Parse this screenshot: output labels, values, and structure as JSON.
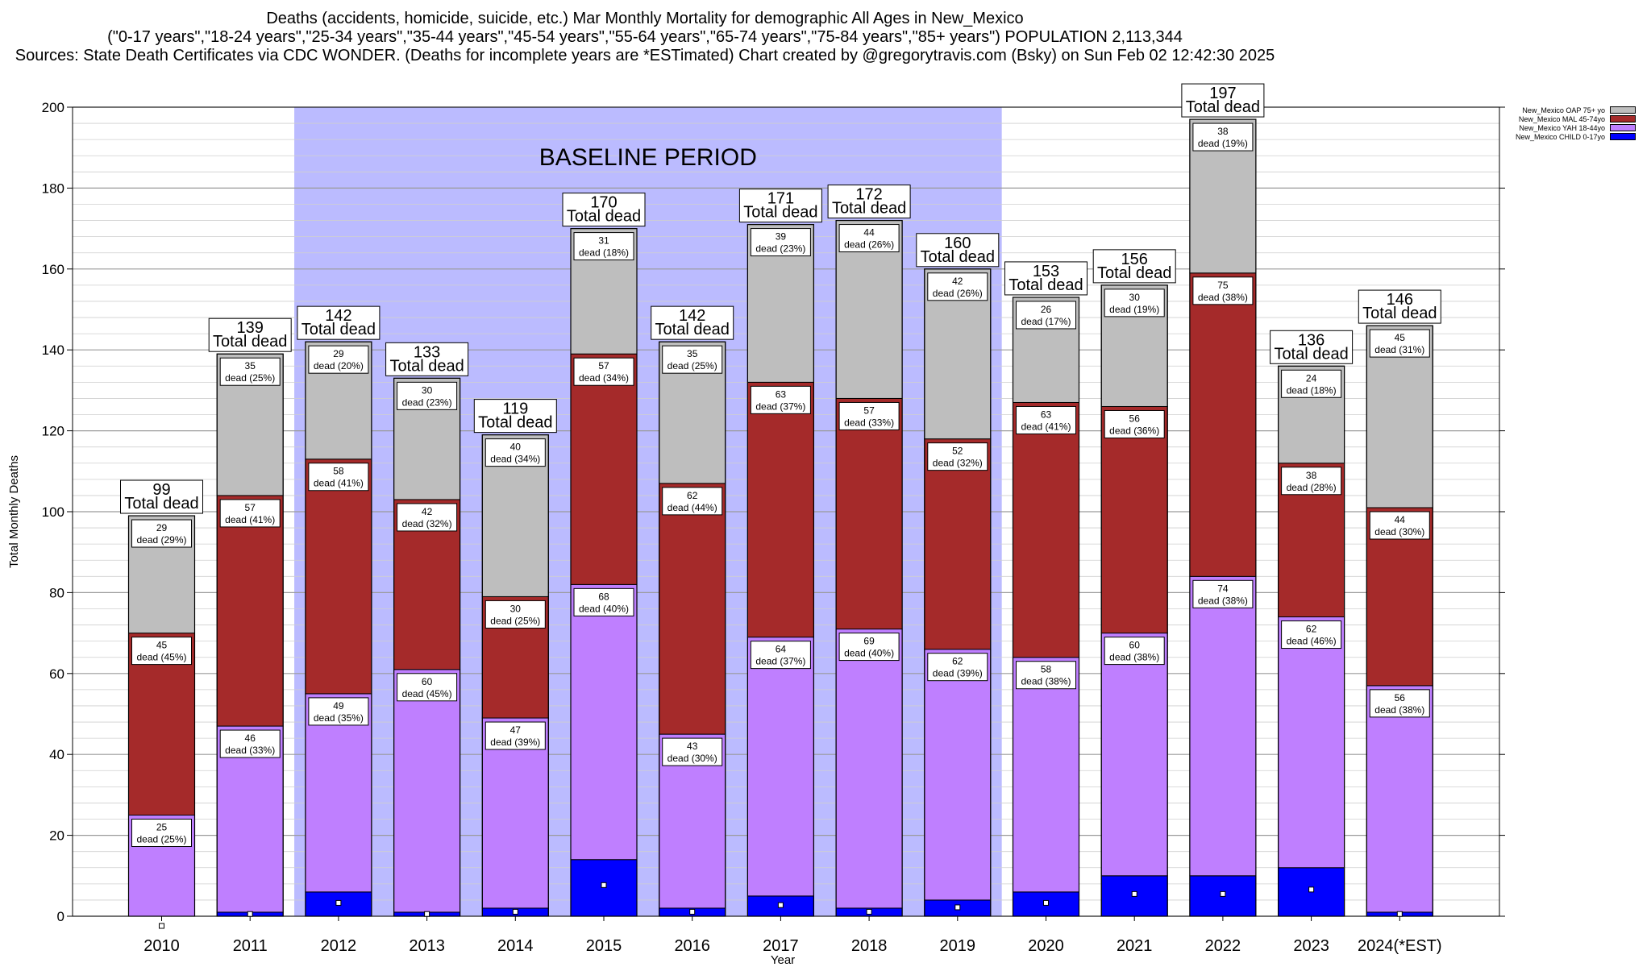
{
  "titles": {
    "line1": "Deaths (accidents, homicide, suicide, etc.) Mar Monthly Mortality for demographic All Ages in New_Mexico",
    "line2": "(\"0-17 years\",\"18-24 years\",\"25-34 years\",\"35-44 years\",\"45-54 years\",\"55-64 years\",\"65-74 years\",\"75-84 years\",\"85+ years\") POPULATION 2,113,344",
    "line3": "Sources: State Death Certificates via CDC WONDER. (Deaths for incomplete years are *ESTimated)                Chart created by @gregorytravis.com (Bsky) on Sun Feb 02 12:42:30 2025"
  },
  "colors": {
    "child": "#0000ff",
    "yah": "#bf7fff",
    "mal": "#a52a2a",
    "oap": "#bebebe",
    "baseline": "#bbbbff"
  },
  "chart_data": {
    "type": "bar",
    "stacked": true,
    "categories": [
      "2010",
      "2011",
      "2012",
      "2013",
      "2014",
      "2015",
      "2016",
      "2017",
      "2018",
      "2019",
      "2020",
      "2021",
      "2022",
      "2023",
      "2024(*EST)"
    ],
    "series": [
      {
        "name": "New_Mexico CHILD 0-17yo",
        "key": "child",
        "values": [
          0,
          1,
          6,
          1,
          2,
          14,
          2,
          5,
          2,
          4,
          6,
          10,
          10,
          12,
          1
        ]
      },
      {
        "name": "New_Mexico YAH 18-44yo",
        "key": "yah",
        "values": [
          25,
          46,
          49,
          60,
          47,
          68,
          43,
          64,
          69,
          62,
          58,
          60,
          74,
          62,
          56
        ],
        "pct": [
          25,
          33,
          35,
          45,
          39,
          40,
          30,
          37,
          40,
          39,
          38,
          38,
          38,
          46,
          38
        ]
      },
      {
        "name": "New_Mexico MAL 45-74yo",
        "key": "mal",
        "values": [
          45,
          57,
          58,
          42,
          30,
          57,
          62,
          63,
          57,
          52,
          63,
          56,
          75,
          38,
          44
        ],
        "pct": [
          45,
          41,
          41,
          32,
          25,
          34,
          44,
          37,
          33,
          32,
          41,
          36,
          38,
          28,
          30
        ]
      },
      {
        "name": "New_Mexico OAP 75+ yo",
        "key": "oap",
        "values": [
          29,
          35,
          29,
          30,
          40,
          31,
          35,
          39,
          44,
          42,
          26,
          30,
          38,
          24,
          45
        ],
        "pct": [
          29,
          25,
          20,
          23,
          34,
          18,
          25,
          23,
          26,
          26,
          17,
          19,
          19,
          18,
          31
        ]
      }
    ],
    "totals": [
      99,
      139,
      142,
      133,
      119,
      170,
      142,
      171,
      172,
      160,
      153,
      156,
      197,
      136,
      146
    ],
    "total_label": "Total dead",
    "segment_suffix": "dead",
    "baseline_label": "BASELINE PERIOD",
    "baseline_range": [
      "2012",
      "2019"
    ],
    "xlabel": "Year",
    "ylabel": "Total Monthly Deaths",
    "ylim": [
      0,
      200
    ],
    "yticks": [
      0,
      20,
      40,
      60,
      80,
      100,
      120,
      140,
      160,
      180,
      200
    ],
    "grid": true,
    "legend_position": "top-right"
  }
}
